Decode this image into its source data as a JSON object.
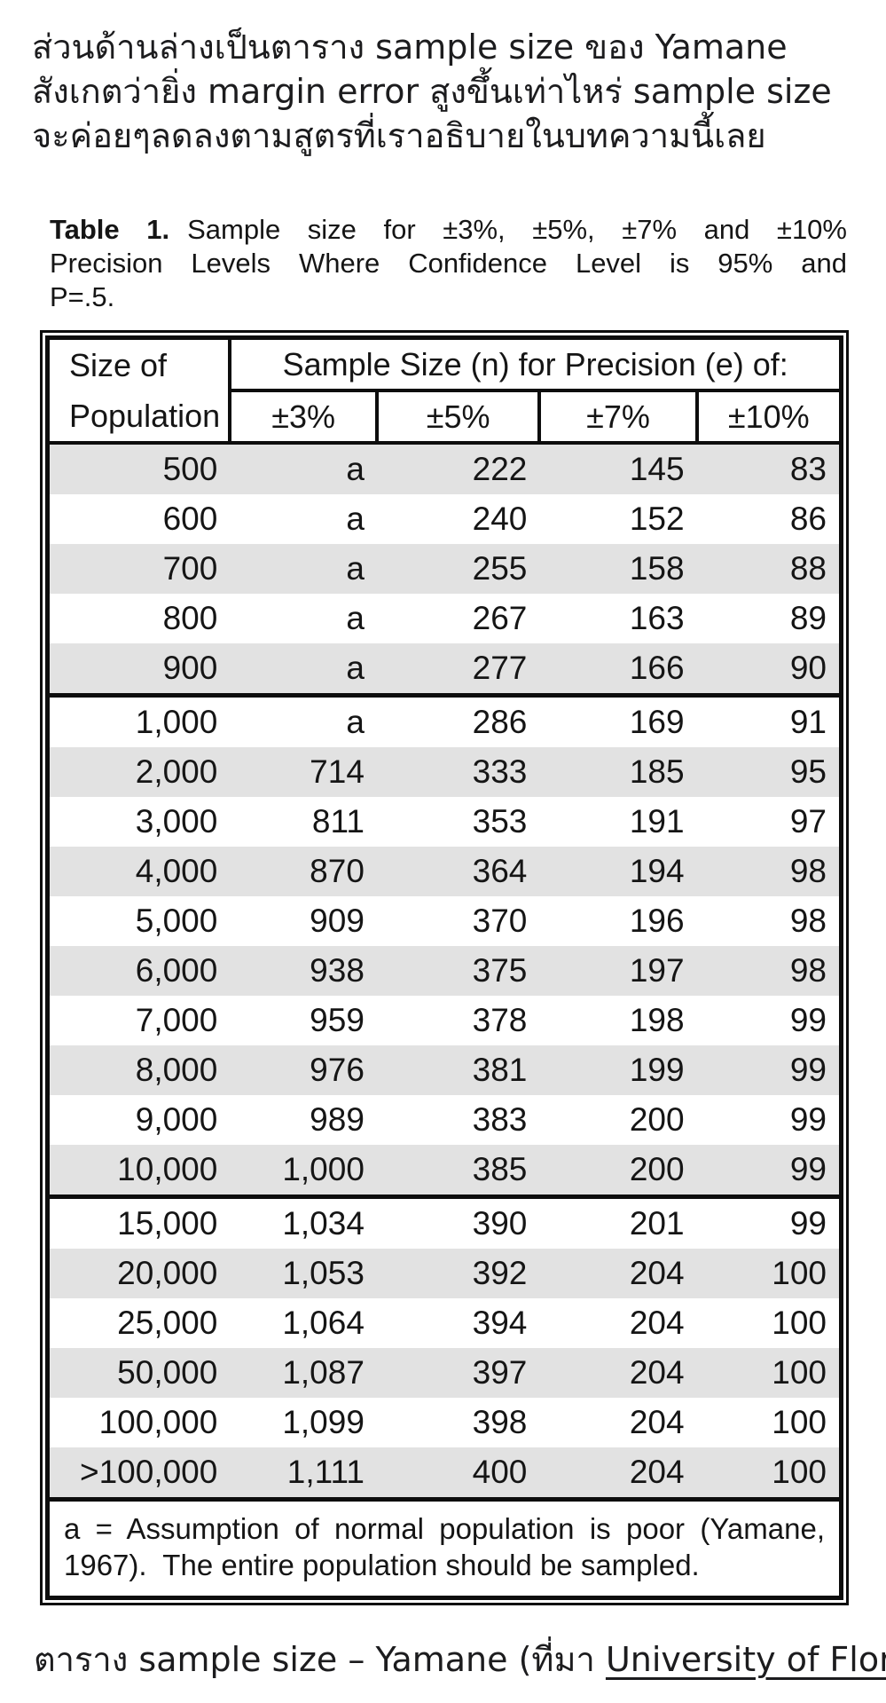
{
  "intro": {
    "lines": [
      "ส่วนด้านล่างเป็นตาราง sample size ของ Yamane",
      "สังเกตว่ายิ่ง margin error สูงขึ้นเท่าไหร่ sample size",
      "จะค่อยๆลดลงตามสูตรที่เราอธิบายในบทความนี้เลย"
    ]
  },
  "table_title": {
    "bold": "Table 1.",
    "line1": "Sample size for ±3%, ±5%, ±7% and ±10%",
    "line2": "Precision Levels Where Confidence Level is 95% and",
    "line3": "P=.5."
  },
  "table": {
    "corner_header_lines": [
      "Size of",
      "Population"
    ],
    "span_header": "Sample Size (n) for Precision (e) of:",
    "precision_headers": [
      "±3%",
      "±5%",
      "±7%",
      "±10%"
    ],
    "columns": [
      "Size of Population",
      "±3%",
      "±5%",
      "±7%",
      "±10%"
    ],
    "rows": [
      [
        "500",
        "a",
        "222",
        "145",
        "83"
      ],
      [
        "600",
        "a",
        "240",
        "152",
        "86"
      ],
      [
        "700",
        "a",
        "255",
        "158",
        "88"
      ],
      [
        "800",
        "a",
        "267",
        "163",
        "89"
      ],
      [
        "900",
        "a",
        "277",
        "166",
        "90"
      ],
      [
        "1,000",
        "a",
        "286",
        "169",
        "91"
      ],
      [
        "2,000",
        "714",
        "333",
        "185",
        "95"
      ],
      [
        "3,000",
        "811",
        "353",
        "191",
        "97"
      ],
      [
        "4,000",
        "870",
        "364",
        "194",
        "98"
      ],
      [
        "5,000",
        "909",
        "370",
        "196",
        "98"
      ],
      [
        "6,000",
        "938",
        "375",
        "197",
        "98"
      ],
      [
        "7,000",
        "959",
        "378",
        "198",
        "99"
      ],
      [
        "8,000",
        "976",
        "381",
        "199",
        "99"
      ],
      [
        "9,000",
        "989",
        "383",
        "200",
        "99"
      ],
      [
        "10,000",
        "1,000",
        "385",
        "200",
        "99"
      ],
      [
        "15,000",
        "1,034",
        "390",
        "201",
        "99"
      ],
      [
        "20,000",
        "1,053",
        "392",
        "204",
        "100"
      ],
      [
        "25,000",
        "1,064",
        "394",
        "204",
        "100"
      ],
      [
        "50,000",
        "1,087",
        "397",
        "204",
        "100"
      ],
      [
        "100,000",
        "1,099",
        "398",
        "204",
        "100"
      ],
      [
        ">100,000",
        "1,111",
        "400",
        "204",
        "100"
      ]
    ],
    "group_start_rows": [
      5,
      15
    ],
    "footnote_lines": [
      "a = Assumption of normal population is poor (Yamane,",
      "1967).  The entire population should be sampled."
    ],
    "stripe_color": "#e2e2e2",
    "border_color": "#0d0d0d"
  },
  "caption": {
    "prefix": "ตาราง sample size – Yamane (ที่มา ",
    "link_text": "University of Florida",
    "suffix": ")"
  }
}
